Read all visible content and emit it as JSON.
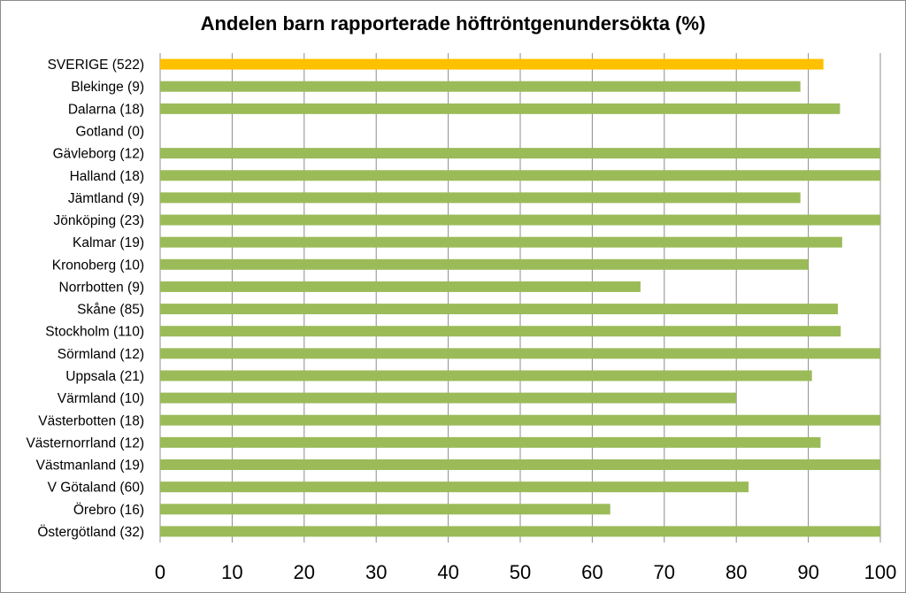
{
  "chart_data": {
    "type": "bar",
    "orientation": "horizontal",
    "title": "Andelen barn rapporterade höftröntgenundersökta (%)",
    "xlabel": "",
    "ylabel": "",
    "xlim": [
      0,
      100
    ],
    "ticks": [
      0,
      10,
      20,
      30,
      40,
      50,
      60,
      70,
      80,
      90,
      100
    ],
    "grid": "vertical",
    "legend": "none",
    "colors": {
      "highlight": "#FFC000",
      "default": "#9BBB59"
    },
    "categories": [
      "SVERIGE (522)",
      "Blekinge (9)",
      "Dalarna (18)",
      "Gotland (0)",
      "Gävleborg (12)",
      "Halland (18)",
      "Jämtland (9)",
      "Jönköping (23)",
      "Kalmar (19)",
      "Kronoberg (10)",
      "Norrbotten (9)",
      "Skåne (85)",
      "Stockholm (110)",
      "Sörmland (12)",
      "Uppsala (21)",
      "Värmland (10)",
      "Västerbotten (18)",
      "Västernorrland (12)",
      "Västmanland (19)",
      "V Götaland (60)",
      "Örebro (16)",
      "Östergötland (32)"
    ],
    "values": [
      92.1,
      88.9,
      94.4,
      0,
      100,
      100,
      88.9,
      100,
      94.7,
      90.0,
      66.7,
      94.1,
      94.5,
      100,
      90.5,
      80.0,
      100,
      91.7,
      100,
      81.7,
      62.5,
      100
    ],
    "highlight_index": 0
  }
}
